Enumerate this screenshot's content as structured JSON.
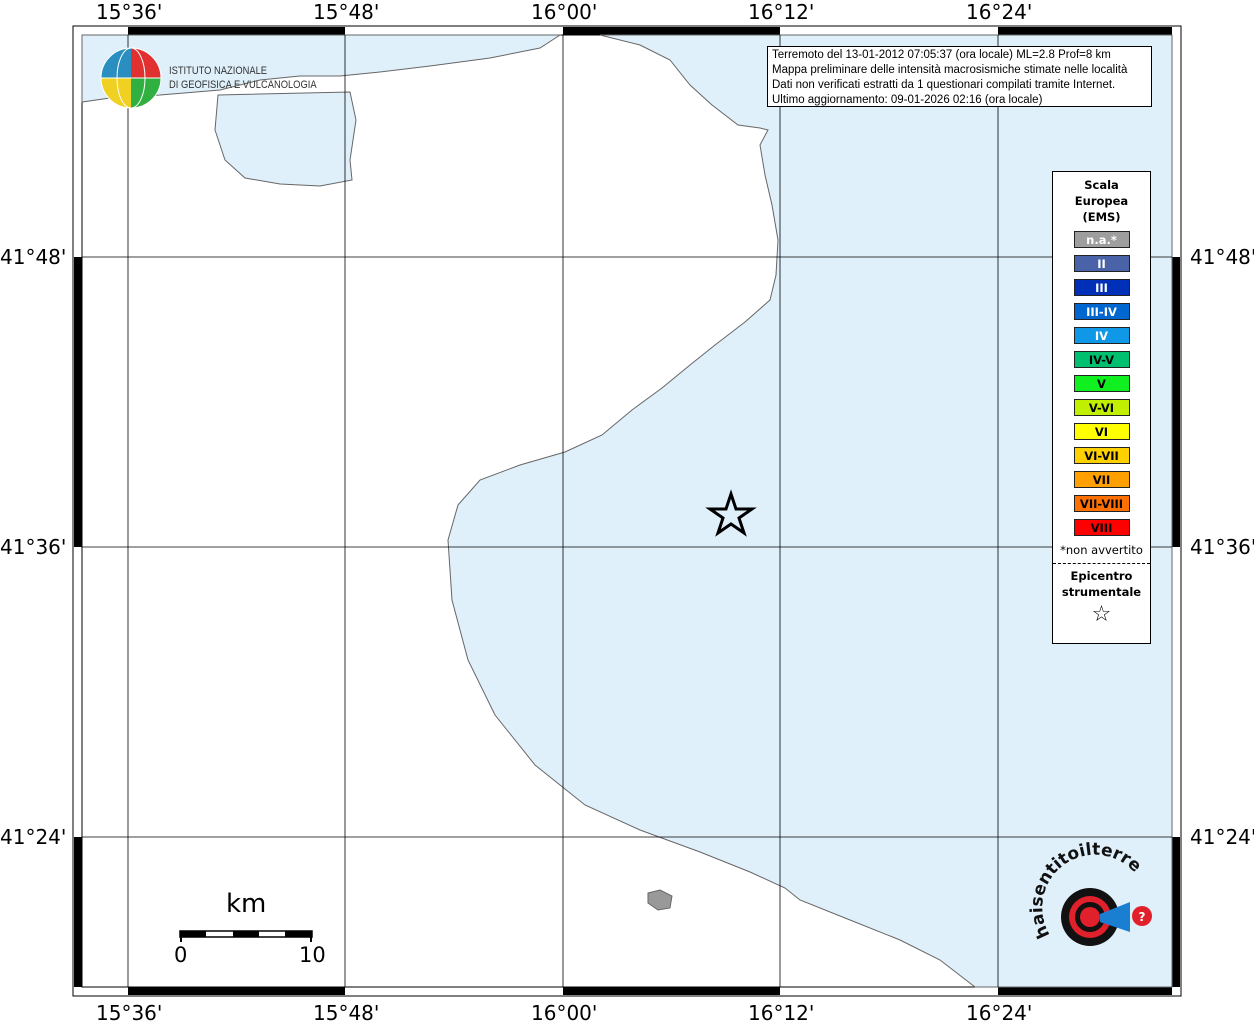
{
  "map": {
    "lon_labels": [
      "15°36'",
      "15°48'",
      "16°00'",
      "16°12'",
      "16°24'"
    ],
    "lat_labels": [
      "41°48'",
      "41°36'",
      "41°24'"
    ],
    "colors": {
      "sea": "#dff0fb",
      "land": "#ffffff",
      "coast": "#666666",
      "grid": "#000000"
    },
    "epicenter_icon": "star-outline-icon"
  },
  "info": {
    "line1": "Terremoto del 13-01-2012 07:05:37 (ora locale) ML=2.8 Prof=8 km",
    "line2": "Mappa preliminare delle intensità macrosismiche stimate nelle località",
    "line3": "Dati non verificati estratti da 1 questionari compilati tramite Internet.",
    "line4": "Ultimo aggiornamento: 09-01-2026 02:16 (ora locale)"
  },
  "legend": {
    "title": [
      "Scala",
      "Europea",
      "(EMS)"
    ],
    "items": [
      {
        "label": "n.a.*",
        "color": "#9e9e9e",
        "text": "#ffffff"
      },
      {
        "label": "II",
        "color": "#4a62a8",
        "text": "#ffffff"
      },
      {
        "label": "III",
        "color": "#0030b8",
        "text": "#ffffff"
      },
      {
        "label": "III-IV",
        "color": "#0066d0",
        "text": "#ffffff"
      },
      {
        "label": "IV",
        "color": "#1098e8",
        "text": "#ffffff"
      },
      {
        "label": "IV-V",
        "color": "#00c070",
        "text": "#000000"
      },
      {
        "label": "V",
        "color": "#10f020",
        "text": "#000000"
      },
      {
        "label": "V-VI",
        "color": "#c0f000",
        "text": "#000000"
      },
      {
        "label": "VI",
        "color": "#ffff00",
        "text": "#000000"
      },
      {
        "label": "VI-VII",
        "color": "#ffd000",
        "text": "#000000"
      },
      {
        "label": "VII",
        "color": "#ffa000",
        "text": "#000000"
      },
      {
        "label": "VII-VIII",
        "color": "#ff7000",
        "text": "#000000"
      },
      {
        "label": "VIII",
        "color": "#ff0000",
        "text": "#000000"
      }
    ],
    "note": "*non avvertito",
    "epicenter_label": [
      "Epicentro",
      "strumentale"
    ],
    "epicenter_symbol": "☆"
  },
  "scale": {
    "unit": "km",
    "min": "0",
    "max": "10"
  },
  "logos": {
    "ingv": [
      "ISTITUTO NAZIONALE",
      "DI GEOFISICA E VULCANOLOGIA"
    ],
    "hsit": "www.haisentitoilterremoto.it"
  }
}
